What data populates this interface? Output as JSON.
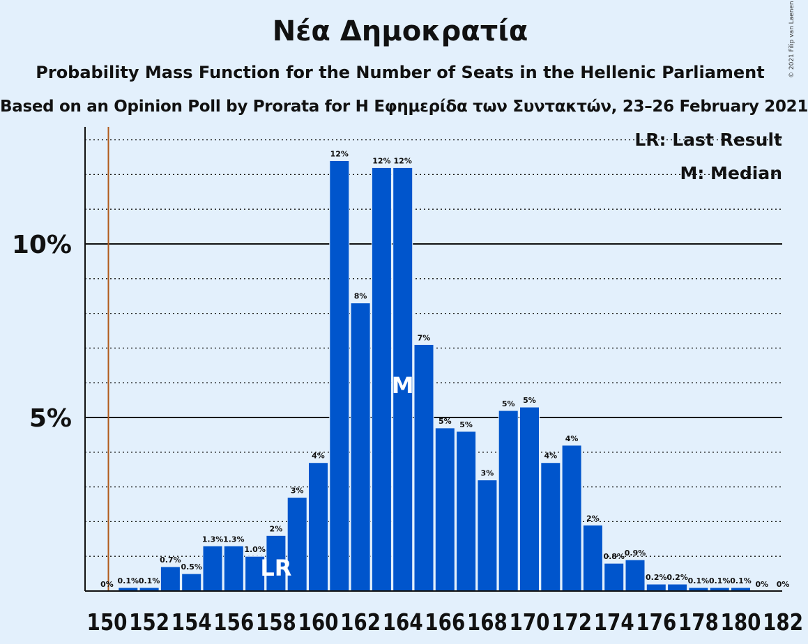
{
  "title": "Νέα Δημοκρατία",
  "subtitle": "Probability Mass Function for the Number of Seats in the Hellenic Parliament",
  "source": "Based on an Opinion Poll by Prorata for Η Εφημερίδα των Συντακτών, 23–26 February 2021",
  "copyright": "© 2021 Filip van Laenen",
  "legend": {
    "last_result": "LR: Last Result",
    "median": "M: Median"
  },
  "colors": {
    "bar": "#0055cc",
    "background": "#e3f0fc",
    "last_result_line": "#b05a1a"
  },
  "chart_data": {
    "type": "bar",
    "title": "Νέα Δημοκρατία",
    "xlabel": "",
    "ylabel": "",
    "ylim": [
      0,
      13.5
    ],
    "yticks": [
      {
        "value": 5,
        "label": "5%"
      },
      {
        "value": 10,
        "label": "10%"
      }
    ],
    "grid": true,
    "legend_position": "top-right",
    "x": [
      150,
      151,
      152,
      153,
      154,
      155,
      156,
      157,
      158,
      159,
      160,
      161,
      162,
      163,
      164,
      165,
      166,
      167,
      168,
      169,
      170,
      171,
      172,
      173,
      174,
      175,
      176,
      177,
      178,
      179,
      180,
      181,
      182
    ],
    "xtick_labels": [
      "150",
      "152",
      "154",
      "156",
      "158",
      "160",
      "162",
      "164",
      "166",
      "168",
      "170",
      "172",
      "174",
      "176",
      "178",
      "180",
      "182"
    ],
    "values": [
      0,
      0.1,
      0.1,
      0.7,
      0.5,
      1.3,
      1.3,
      1.0,
      1.6,
      2.7,
      3.7,
      12.4,
      8.3,
      12.2,
      12.2,
      7.1,
      4.7,
      4.6,
      3.2,
      5.2,
      5.3,
      3.7,
      4.2,
      1.9,
      0.8,
      0.9,
      0.2,
      0.2,
      0.1,
      0.1,
      0.1,
      0,
      0
    ],
    "value_labels": [
      "0%",
      "0.1%",
      "0.1%",
      "0.7%",
      "0.5%",
      "1.3%",
      "1.3%",
      "1.0%",
      "2%",
      "3%",
      "4%",
      "12%",
      "8%",
      "12%",
      "12%",
      "7%",
      "5%",
      "5%",
      "3%",
      "5%",
      "5%",
      "4%",
      "4%",
      "2%",
      "0.8%",
      "0.9%",
      "0.2%",
      "0.2%",
      "0.1%",
      "0.1%",
      "0.1%",
      "0%",
      "0%"
    ],
    "last_result": {
      "x": 158,
      "label": "LR"
    },
    "median": {
      "x": 164,
      "label": "M"
    },
    "last_result_line_x": 150.5
  }
}
